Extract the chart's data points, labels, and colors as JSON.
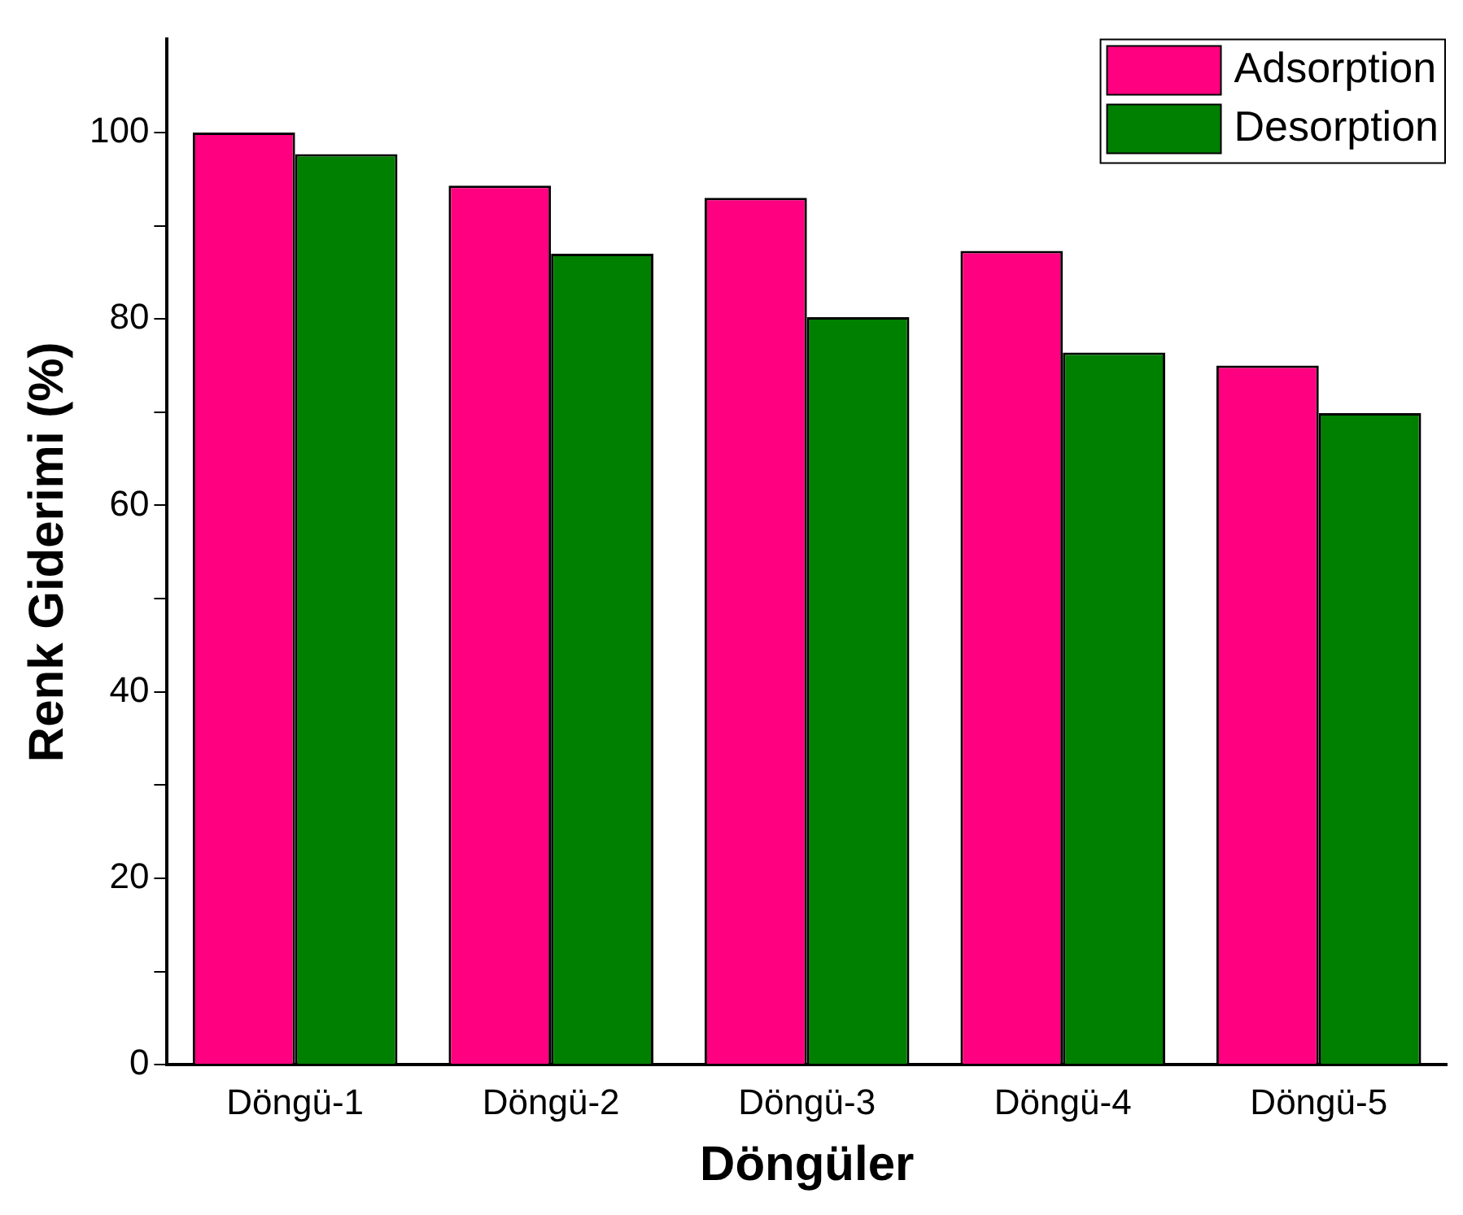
{
  "chart_data": {
    "type": "bar",
    "xlabel": "Döngüler",
    "ylabel": "Renk Giderimi (%)",
    "categories": [
      "Döngü-1",
      "Döngü-2",
      "Döngü-3",
      "Döngü-4",
      "Döngü-5"
    ],
    "series": [
      {
        "name": "Adsorption",
        "color": "#ff0080",
        "values": [
          100,
          94.3,
          93,
          87.3,
          75
        ]
      },
      {
        "name": "Desorption",
        "color": "#008000",
        "values": [
          97.7,
          87,
          80.2,
          76.4,
          69.9
        ]
      }
    ],
    "ylim": [
      0,
      110
    ],
    "yticks": [
      0,
      {
        "value": 10,
        "label": null
      },
      20,
      {
        "value": 30,
        "label": null
      },
      40,
      {
        "value": 50,
        "label": null
      },
      60,
      {
        "value": 70,
        "label": null
      },
      80,
      {
        "value": 90,
        "label": null
      },
      100
    ],
    "grid": false,
    "legend": "top right"
  }
}
